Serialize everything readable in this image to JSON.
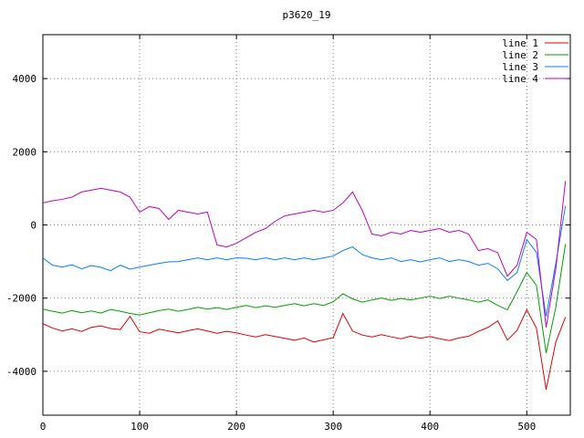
{
  "chart_data": {
    "type": "line",
    "title": "p3620_19",
    "xlabel": "",
    "ylabel": "",
    "xlim": [
      0,
      545
    ],
    "ylim": [
      -5200,
      5200
    ],
    "xticks": [
      0,
      100,
      200,
      300,
      400,
      500
    ],
    "yticks": [
      -4000,
      -2000,
      0,
      2000,
      4000
    ],
    "grid": true,
    "grid_color": "#808080",
    "legend_position": "top-right-inside",
    "x": [
      0,
      10,
      20,
      30,
      40,
      50,
      60,
      70,
      80,
      90,
      100,
      110,
      120,
      130,
      140,
      150,
      160,
      170,
      180,
      190,
      200,
      210,
      220,
      230,
      240,
      250,
      260,
      270,
      280,
      290,
      300,
      310,
      320,
      330,
      340,
      350,
      360,
      370,
      380,
      390,
      400,
      410,
      420,
      430,
      440,
      450,
      460,
      470,
      480,
      490,
      500,
      510,
      520,
      530,
      540
    ],
    "series": [
      {
        "name": "line 1",
        "color": "#e00000",
        "values": [
          -2700,
          -2820,
          -2900,
          -2840,
          -2910,
          -2800,
          -2760,
          -2830,
          -2860,
          -2500,
          -2920,
          -2960,
          -2850,
          -2900,
          -2950,
          -2890,
          -2840,
          -2900,
          -2960,
          -2910,
          -2950,
          -3010,
          -3060,
          -3000,
          -3050,
          -3100,
          -3150,
          -3090,
          -3200,
          -3140,
          -3080,
          -2420,
          -2900,
          -3010,
          -3060,
          -3000,
          -3060,
          -3110,
          -3040,
          -3100,
          -3050,
          -3110,
          -3160,
          -3090,
          -3040,
          -2910,
          -2800,
          -2620,
          -3150,
          -2880,
          -2320,
          -2820,
          -4500,
          -3200,
          -2520
        ]
      },
      {
        "name": "line 2",
        "color": "#00a000",
        "values": [
          -2300,
          -2360,
          -2410,
          -2340,
          -2400,
          -2350,
          -2410,
          -2310,
          -2360,
          -2420,
          -2460,
          -2400,
          -2340,
          -2300,
          -2360,
          -2310,
          -2250,
          -2300,
          -2260,
          -2310,
          -2250,
          -2200,
          -2260,
          -2210,
          -2250,
          -2200,
          -2150,
          -2210,
          -2150,
          -2200,
          -2100,
          -1880,
          -2020,
          -2110,
          -2050,
          -2000,
          -2060,
          -2010,
          -2050,
          -2000,
          -1950,
          -2010,
          -1950,
          -2000,
          -2050,
          -2110,
          -2050,
          -2200,
          -2320,
          -1820,
          -1300,
          -1650,
          -3500,
          -2250,
          -520
        ]
      },
      {
        "name": "line 3",
        "color": "#0080ff",
        "values": [
          -900,
          -1100,
          -1150,
          -1090,
          -1200,
          -1110,
          -1160,
          -1250,
          -1100,
          -1210,
          -1150,
          -1100,
          -1050,
          -1010,
          -1000,
          -950,
          -900,
          -950,
          -900,
          -950,
          -900,
          -910,
          -950,
          -900,
          -950,
          -900,
          -950,
          -900,
          -950,
          -900,
          -850,
          -700,
          -600,
          -810,
          -900,
          -950,
          -900,
          -1000,
          -950,
          -1010,
          -950,
          -900,
          -1000,
          -950,
          -1000,
          -1100,
          -1050,
          -1200,
          -1520,
          -1300,
          -400,
          -750,
          -2500,
          -1050,
          520
        ]
      },
      {
        "name": "line 4",
        "color": "#c000c0",
        "values": [
          600,
          660,
          700,
          760,
          900,
          950,
          1000,
          950,
          900,
          760,
          350,
          500,
          450,
          150,
          400,
          350,
          300,
          350,
          -550,
          -600,
          -500,
          -350,
          -200,
          -100,
          100,
          250,
          300,
          350,
          400,
          350,
          400,
          600,
          900,
          400,
          -250,
          -300,
          -200,
          -250,
          -150,
          -200,
          -150,
          -100,
          -200,
          -150,
          -250,
          -700,
          -650,
          -760,
          -1400,
          -1100,
          -200,
          -400,
          -2800,
          -1200,
          1200
        ]
      }
    ]
  }
}
